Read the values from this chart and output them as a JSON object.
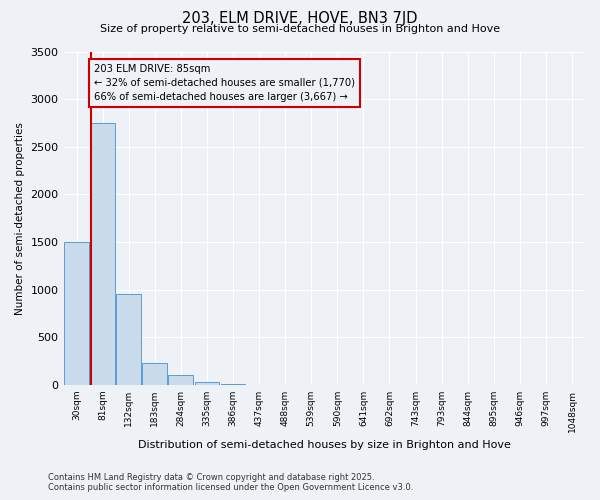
{
  "title_line1": "203, ELM DRIVE, HOVE, BN3 7JD",
  "title_line2": "Size of property relative to semi-detached houses in Brighton and Hove",
  "xlabel": "Distribution of semi-detached houses by size in Brighton and Hove",
  "ylabel": "Number of semi-detached properties",
  "bin_labels": [
    "30sqm",
    "81sqm",
    "132sqm",
    "183sqm",
    "284sqm",
    "335sqm",
    "386sqm",
    "437sqm",
    "488sqm",
    "539sqm",
    "590sqm",
    "641sqm",
    "692sqm",
    "743sqm",
    "793sqm",
    "844sqm",
    "895sqm",
    "946sqm",
    "997sqm",
    "1048sqm"
  ],
  "bar_heights": [
    1500,
    2750,
    950,
    225,
    100,
    30,
    5,
    2,
    1,
    1,
    0,
    0,
    0,
    0,
    0,
    0,
    0,
    0,
    0,
    0
  ],
  "bar_color": "#c9daea",
  "bar_edge_color": "#5b9bd5",
  "property_bin_index": 1,
  "property_name": "203 ELM DRIVE: 85sqm",
  "pct_smaller": 32,
  "pct_larger": 66,
  "n_smaller": 1770,
  "n_larger": 3667,
  "annotation_box_color": "#cc0000",
  "vline_color": "#cc0000",
  "ylim": [
    0,
    3500
  ],
  "yticks": [
    0,
    500,
    1000,
    1500,
    2000,
    2500,
    3000,
    3500
  ],
  "background_color": "#eef2f7",
  "grid_color": "#ffffff",
  "footer_line1": "Contains HM Land Registry data © Crown copyright and database right 2025.",
  "footer_line2": "Contains public sector information licensed under the Open Government Licence v3.0."
}
